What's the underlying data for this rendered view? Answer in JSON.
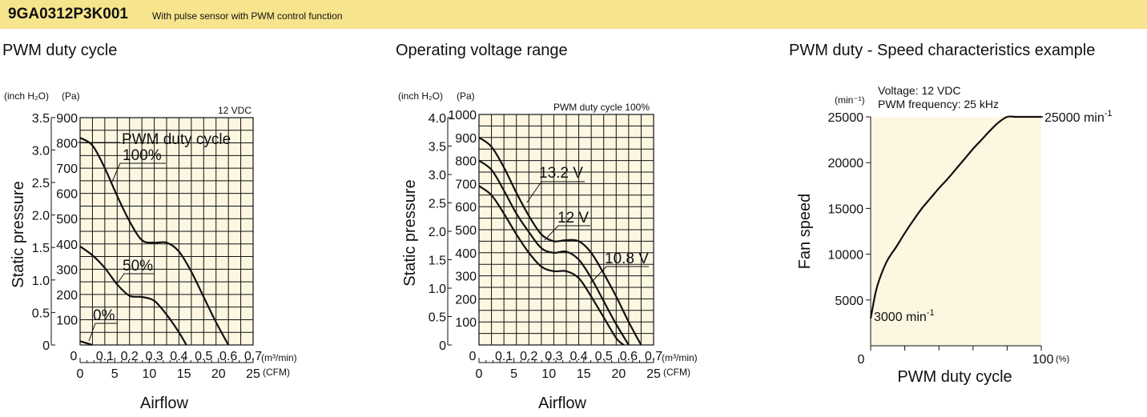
{
  "header": {
    "model": "9GA0312P3K001",
    "description": "With pulse sensor with PWM control function",
    "color": "#f7e58d"
  },
  "panels": {
    "p1_title": "PWM duty cycle",
    "p2_title": "Operating voltage range",
    "p3_title": "PWM duty - Speed characteristics example"
  },
  "chart_data": [
    {
      "type": "line",
      "annotation": "12 VDC",
      "ylabel": "Static pressure",
      "xlabel": "Airflow",
      "y_unit_inch": "(inch H₂O)",
      "y_unit_pa": "(Pa)",
      "x_unit_m3": "(m³/min)",
      "x_unit_cfm": "(CFM)",
      "xlim": [
        0,
        0.7
      ],
      "ylim": [
        0,
        900
      ],
      "x_ticks": [
        "0",
        "0.1",
        "0.2",
        "0.3",
        "0.4",
        "0.5",
        "0.6",
        "0.7"
      ],
      "y_ticks_pa": [
        "0",
        "100",
        "200",
        "300",
        "400",
        "500",
        "600",
        "700",
        "800",
        "900"
      ],
      "y_ticks_inch": [
        "0",
        "0.5",
        "1.0",
        "1.5",
        "2.0",
        "2.5",
        "3.0",
        "3.5"
      ],
      "cfm_ticks": [
        "0",
        "5",
        "10",
        "15",
        "20",
        "25"
      ],
      "legend_title": "PWM duty cycle",
      "grid": true,
      "series": [
        {
          "name": "100%",
          "x": [
            0,
            0.05,
            0.1,
            0.15,
            0.2,
            0.25,
            0.3,
            0.35,
            0.4,
            0.45,
            0.5,
            0.55,
            0.6
          ],
          "y": [
            820,
            790,
            700,
            590,
            490,
            415,
            405,
            405,
            370,
            290,
            190,
            90,
            0
          ]
        },
        {
          "name": "50%",
          "x": [
            0,
            0.05,
            0.1,
            0.15,
            0.2,
            0.25,
            0.3,
            0.35,
            0.4,
            0.43
          ],
          "y": [
            390,
            355,
            305,
            240,
            195,
            190,
            175,
            120,
            50,
            0
          ]
        },
        {
          "name": "0%",
          "x": [
            0,
            0.03,
            0.05
          ],
          "y": [
            15,
            6,
            0
          ]
        }
      ]
    },
    {
      "type": "line",
      "annotation": "PWM duty cycle 100%",
      "ylabel": "Static pressure",
      "xlabel": "Airflow",
      "y_unit_inch": "(inch H₂O)",
      "y_unit_pa": "(Pa)",
      "x_unit_m3": "(m³/min)",
      "x_unit_cfm": "(CFM)",
      "xlim": [
        0,
        0.7
      ],
      "ylim": [
        0,
        1000
      ],
      "x_ticks": [
        "0",
        "0.1",
        "0.2",
        "0.3",
        "0.4",
        "0.5",
        "0.6",
        "0.7"
      ],
      "y_ticks_pa": [
        "0",
        "100",
        "200",
        "300",
        "400",
        "500",
        "600",
        "700",
        "800",
        "900",
        "1000"
      ],
      "y_ticks_inch": [
        "0",
        "0.5",
        "1.0",
        "1.5",
        "2.0",
        "2.5",
        "3.0",
        "3.5",
        "4.0"
      ],
      "cfm_ticks": [
        "0",
        "5",
        "10",
        "15",
        "20",
        "25"
      ],
      "grid": true,
      "series": [
        {
          "name": "13.2 V",
          "x": [
            0,
            0.05,
            0.1,
            0.15,
            0.2,
            0.25,
            0.3,
            0.35,
            0.4,
            0.45,
            0.5,
            0.55,
            0.6,
            0.65
          ],
          "y": [
            900,
            860,
            770,
            660,
            560,
            480,
            450,
            455,
            450,
            400,
            310,
            210,
            100,
            0
          ]
        },
        {
          "name": "12 V",
          "x": [
            0,
            0.05,
            0.1,
            0.15,
            0.2,
            0.25,
            0.3,
            0.35,
            0.4,
            0.45,
            0.5,
            0.55,
            0.6
          ],
          "y": [
            800,
            760,
            670,
            570,
            490,
            420,
            400,
            405,
            370,
            290,
            190,
            90,
            0
          ]
        },
        {
          "name": "10.8 V",
          "x": [
            0,
            0.05,
            0.1,
            0.15,
            0.2,
            0.25,
            0.3,
            0.35,
            0.4,
            0.45,
            0.5,
            0.55,
            0.58
          ],
          "y": [
            690,
            650,
            570,
            480,
            400,
            340,
            320,
            320,
            290,
            210,
            120,
            30,
            0
          ]
        }
      ]
    },
    {
      "type": "line",
      "ylabel": "Fan speed",
      "xlabel": "PWM duty cycle",
      "y_unit": "(min⁻¹)",
      "x_unit": "(%)",
      "annotation_voltage": "Voltage: 12 VDC",
      "annotation_frequency": "PWM frequency: 25 kHz",
      "label_max": "25000 min",
      "label_min": "3000 min",
      "label_exp": "-1",
      "xlim": [
        0,
        100
      ],
      "ylim": [
        0,
        25000
      ],
      "x_tick_labels": [
        "0",
        "100"
      ],
      "y_ticks": [
        "5000",
        "10000",
        "15000",
        "20000",
        "25000"
      ],
      "grid": false,
      "series": [
        {
          "x": [
            0,
            3,
            6,
            10,
            15,
            20,
            25,
            30,
            35,
            40,
            45,
            50,
            55,
            60,
            65,
            70,
            75,
            80,
            85,
            90,
            95,
            100
          ],
          "y": [
            3000,
            5900,
            7700,
            9400,
            10800,
            12300,
            13700,
            15000,
            16100,
            17200,
            18200,
            19300,
            20400,
            21500,
            22500,
            23500,
            24400,
            25000,
            25000,
            25000,
            25000,
            25000
          ]
        }
      ]
    }
  ]
}
